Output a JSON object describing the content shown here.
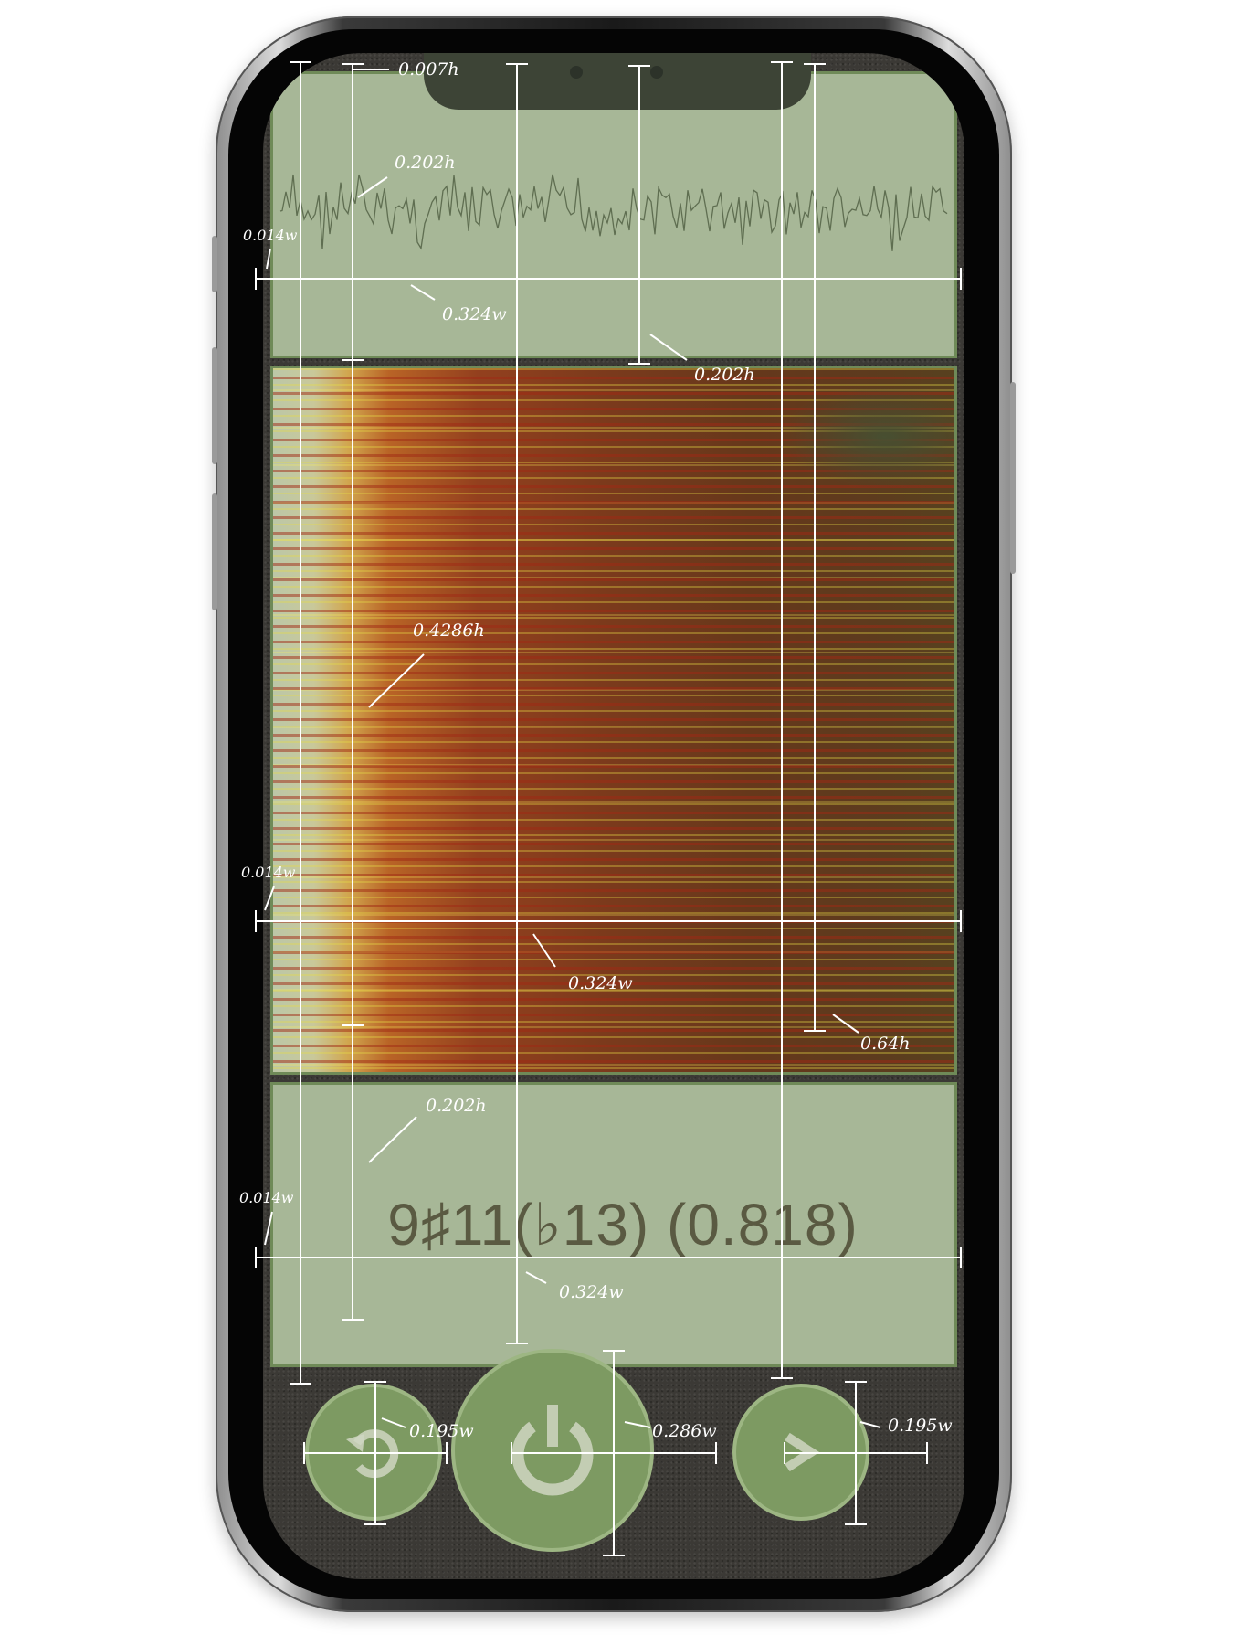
{
  "chord": {
    "label": "9♯11(♭13) (0.818)"
  },
  "controls": {
    "reset": {
      "icon": "rotate-ccw-icon"
    },
    "power": {
      "icon": "power-icon"
    },
    "next": {
      "icon": "chevron-right-icon"
    }
  },
  "annotations": {
    "wave_top_height": "0.007h",
    "wave_trace_height": "0.202h",
    "wave_margin_left": "0.014w",
    "wave_width": "0.324w",
    "wave_panel_height": "0.202h",
    "spec_height": "0.4286h",
    "spec_margin_left": "0.014w",
    "spec_width": "0.324w",
    "spec_total_height": "0.64h",
    "chord_height": "0.202h",
    "chord_margin_left": "0.014w",
    "chord_width": "0.324w",
    "reset_button_size": "0.195w",
    "power_button_size": "0.286w",
    "next_button_size": "0.195w"
  },
  "colors": {
    "panel_fill": "#a7b797",
    "panel_border": "#6f8a58",
    "button_fill": "#7d9a62",
    "background": "#3b3935",
    "chord_text": "#5a5a42"
  }
}
